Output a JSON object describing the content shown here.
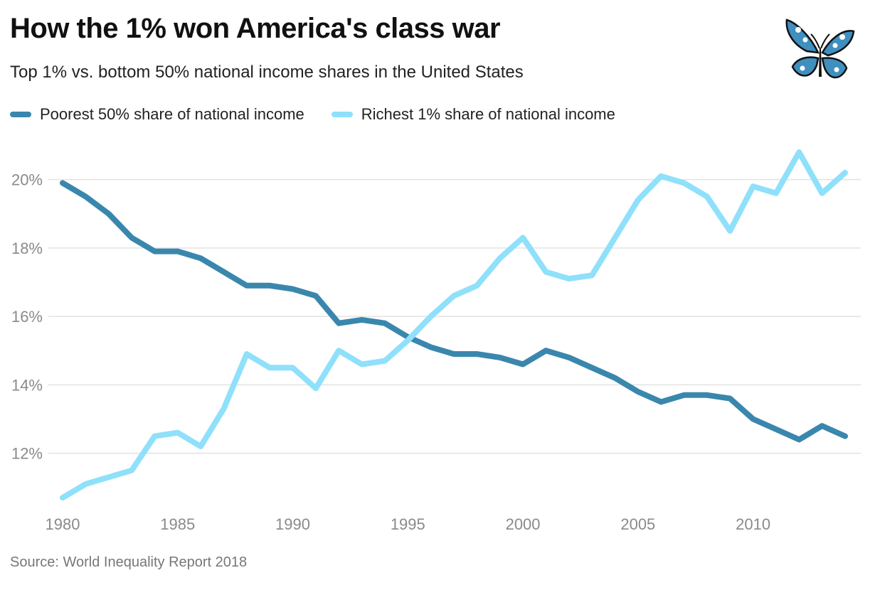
{
  "title": "How the 1% won America's class war",
  "subtitle": "Top 1% vs. bottom 50% national income shares in the United States",
  "source": "Source: World Inequality Report 2018",
  "logo": {
    "icon": "butterfly-logo-icon",
    "color": "#3f8fbf"
  },
  "chart_data": {
    "type": "line",
    "title": "How the 1% won America's class war",
    "subtitle": "Top 1% vs. bottom 50% national income shares in the United States",
    "xlabel": "",
    "ylabel": "",
    "x": [
      1980,
      1981,
      1982,
      1983,
      1984,
      1985,
      1986,
      1987,
      1988,
      1989,
      1990,
      1991,
      1992,
      1993,
      1994,
      1995,
      1996,
      1997,
      1998,
      1999,
      2000,
      2001,
      2002,
      2003,
      2004,
      2005,
      2006,
      2007,
      2008,
      2009,
      2010,
      2011,
      2012,
      2013,
      2014
    ],
    "x_ticks": [
      "1980",
      "1985",
      "1990",
      "1995",
      "2000",
      "2005",
      "2010"
    ],
    "y_ticks": [
      "12%",
      "14%",
      "16%",
      "18%",
      "20%"
    ],
    "ylim": [
      10.6,
      21.3
    ],
    "grid": true,
    "legend_position": "top-left",
    "series": [
      {
        "name": "Poorest 50% share of national income",
        "color": "#3a87ad",
        "values": [
          19.9,
          19.5,
          19.0,
          18.3,
          17.9,
          17.9,
          17.7,
          17.3,
          16.9,
          16.9,
          16.8,
          16.6,
          15.8,
          15.9,
          15.8,
          15.4,
          15.1,
          14.9,
          14.9,
          14.8,
          14.6,
          15.0,
          14.8,
          14.5,
          14.2,
          13.8,
          13.5,
          13.7,
          13.7,
          13.6,
          13.0,
          12.7,
          12.4,
          12.8,
          12.5
        ]
      },
      {
        "name": "Richest 1% share of national income",
        "color": "#8fe0fb",
        "values": [
          10.7,
          11.1,
          11.3,
          11.5,
          12.5,
          12.6,
          12.2,
          13.3,
          14.9,
          14.5,
          14.5,
          13.9,
          15.0,
          14.6,
          14.7,
          15.3,
          16.0,
          16.6,
          16.9,
          17.7,
          18.3,
          17.3,
          17.1,
          17.2,
          18.3,
          19.4,
          20.1,
          19.9,
          19.5,
          18.5,
          19.8,
          19.6,
          20.8,
          19.6,
          20.2
        ]
      }
    ]
  }
}
